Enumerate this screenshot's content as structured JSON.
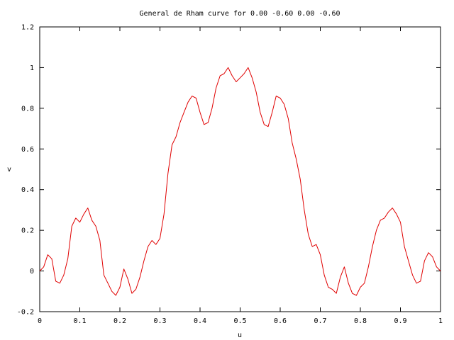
{
  "chart_data": {
    "type": "line",
    "title": "General de Rham curve for 0.00 -0.60 0.00 -0.60",
    "xlabel": "u",
    "ylabel": "v",
    "xlim": [
      0,
      1
    ],
    "ylim": [
      -0.2,
      1.2
    ],
    "xticks": [
      0,
      0.1,
      0.2,
      0.3,
      0.4,
      0.5,
      0.6,
      0.7,
      0.8,
      0.9,
      1
    ],
    "yticks": [
      -0.2,
      0,
      0.2,
      0.4,
      0.6,
      0.8,
      1,
      1.2
    ],
    "grid": false,
    "legend": "none",
    "series": [
      {
        "color": "#e00000",
        "x": [
          0,
          0.01,
          0.02,
          0.03,
          0.04,
          0.05,
          0.06,
          0.07,
          0.08,
          0.09,
          0.1,
          0.11,
          0.12,
          0.13,
          0.14,
          0.15,
          0.16,
          0.17,
          0.18,
          0.19,
          0.2,
          0.21,
          0.22,
          0.23,
          0.24,
          0.25,
          0.26,
          0.27,
          0.28,
          0.29,
          0.3,
          0.31,
          0.32,
          0.33,
          0.34,
          0.35,
          0.36,
          0.37,
          0.38,
          0.39,
          0.4,
          0.41,
          0.42,
          0.43,
          0.44,
          0.45,
          0.46,
          0.47,
          0.48,
          0.49,
          0.5,
          0.51,
          0.52,
          0.53,
          0.54,
          0.55,
          0.56,
          0.57,
          0.58,
          0.59,
          0.6,
          0.61,
          0.62,
          0.63,
          0.64,
          0.65,
          0.66,
          0.67,
          0.68,
          0.69,
          0.7,
          0.71,
          0.72,
          0.73,
          0.74,
          0.75,
          0.76,
          0.77,
          0.78,
          0.79,
          0.8,
          0.81,
          0.82,
          0.83,
          0.84,
          0.85,
          0.86,
          0.87,
          0.88,
          0.89,
          0.9,
          0.91,
          0.92,
          0.93,
          0.94,
          0.95,
          0.96,
          0.97,
          0.98,
          0.99,
          1
        ],
        "y": [
          0,
          0.02,
          0.08,
          0.06,
          -0.05,
          -0.06,
          -0.02,
          0.06,
          0.22,
          0.26,
          0.24,
          0.28,
          0.31,
          0.25,
          0.22,
          0.15,
          -0.02,
          -0.06,
          -0.1,
          -0.12,
          -0.08,
          0.01,
          -0.04,
          -0.11,
          -0.09,
          -0.03,
          0.05,
          0.12,
          0.15,
          0.13,
          0.16,
          0.28,
          0.48,
          0.62,
          0.66,
          0.73,
          0.78,
          0.83,
          0.86,
          0.85,
          0.78,
          0.72,
          0.73,
          0.8,
          0.9,
          0.96,
          0.97,
          1.0,
          0.96,
          0.93,
          0.95,
          0.97,
          1.0,
          0.95,
          0.88,
          0.78,
          0.72,
          0.71,
          0.78,
          0.86,
          0.85,
          0.82,
          0.75,
          0.63,
          0.55,
          0.45,
          0.3,
          0.18,
          0.12,
          0.13,
          0.08,
          -0.02,
          -0.08,
          -0.09,
          -0.11,
          -0.03,
          0.02,
          -0.06,
          -0.11,
          -0.12,
          -0.08,
          -0.06,
          0.02,
          0.12,
          0.2,
          0.25,
          0.26,
          0.29,
          0.31,
          0.28,
          0.24,
          0.12,
          0.05,
          -0.02,
          -0.06,
          -0.05,
          0.05,
          0.09,
          0.07,
          0.02,
          0
        ]
      }
    ]
  }
}
